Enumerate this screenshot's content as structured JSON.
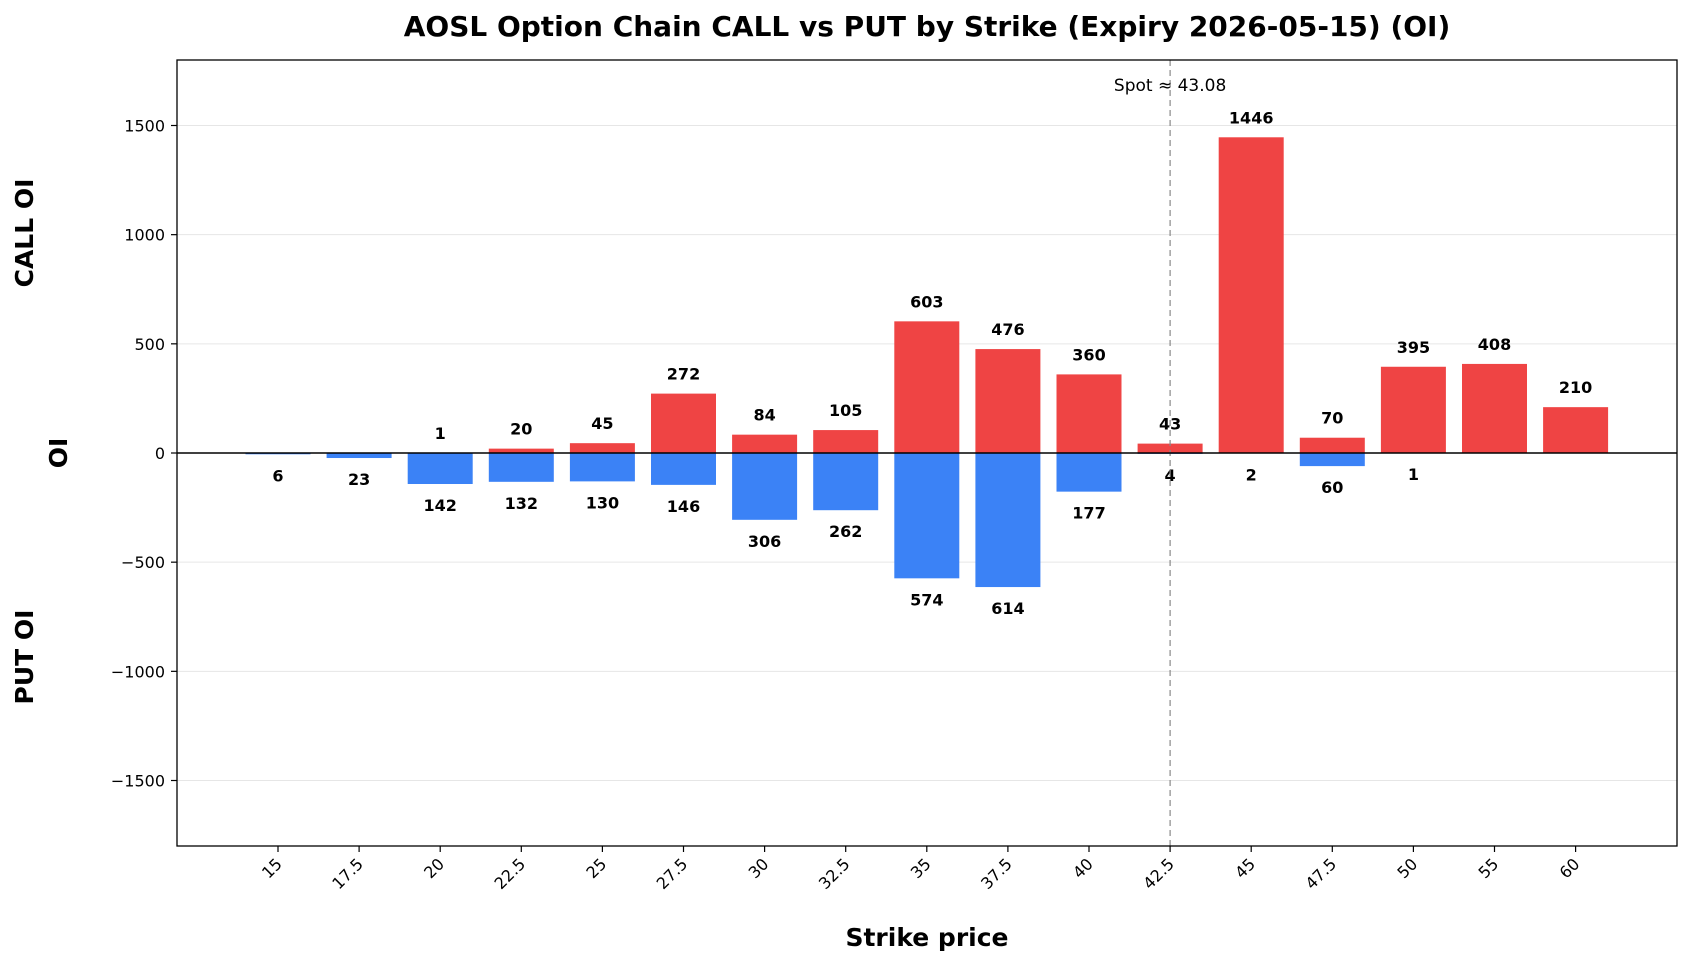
{
  "chart_data": {
    "type": "bar",
    "title": "AOSL Option Chain CALL vs PUT by Strike (Expiry 2026-05-15) (OI)",
    "xlabel": "Strike price",
    "ylabel": "OI",
    "ylabel_top": "CALL OI",
    "ylabel_bottom": "PUT OI",
    "categories": [
      "15",
      "17.5",
      "20",
      "22.5",
      "25",
      "27.5",
      "30",
      "32.5",
      "35",
      "37.5",
      "40",
      "42.5",
      "45",
      "47.5",
      "50",
      "55",
      "60"
    ],
    "series": [
      {
        "name": "CALL",
        "color": "#ef4444",
        "values": [
          null,
          null,
          1,
          20,
          45,
          272,
          84,
          105,
          603,
          476,
          360,
          43,
          1446,
          70,
          395,
          408,
          210
        ]
      },
      {
        "name": "PUT",
        "color": "#3b82f6",
        "values": [
          6,
          23,
          142,
          132,
          130,
          146,
          306,
          262,
          574,
          614,
          177,
          4,
          2,
          60,
          1,
          null,
          null
        ]
      }
    ],
    "ylim": [
      -1800,
      1800
    ],
    "yticks": [
      -1500,
      -1000,
      -500,
      0,
      500,
      1000,
      1500
    ],
    "ytick_labels": [
      "−1500",
      "−1000",
      "−500",
      "0",
      "500",
      "1000",
      "1500"
    ],
    "grid": "horizontal",
    "spot": {
      "value": 43.08,
      "label": "Spot ≈ 43.08",
      "category_index": 11
    }
  }
}
